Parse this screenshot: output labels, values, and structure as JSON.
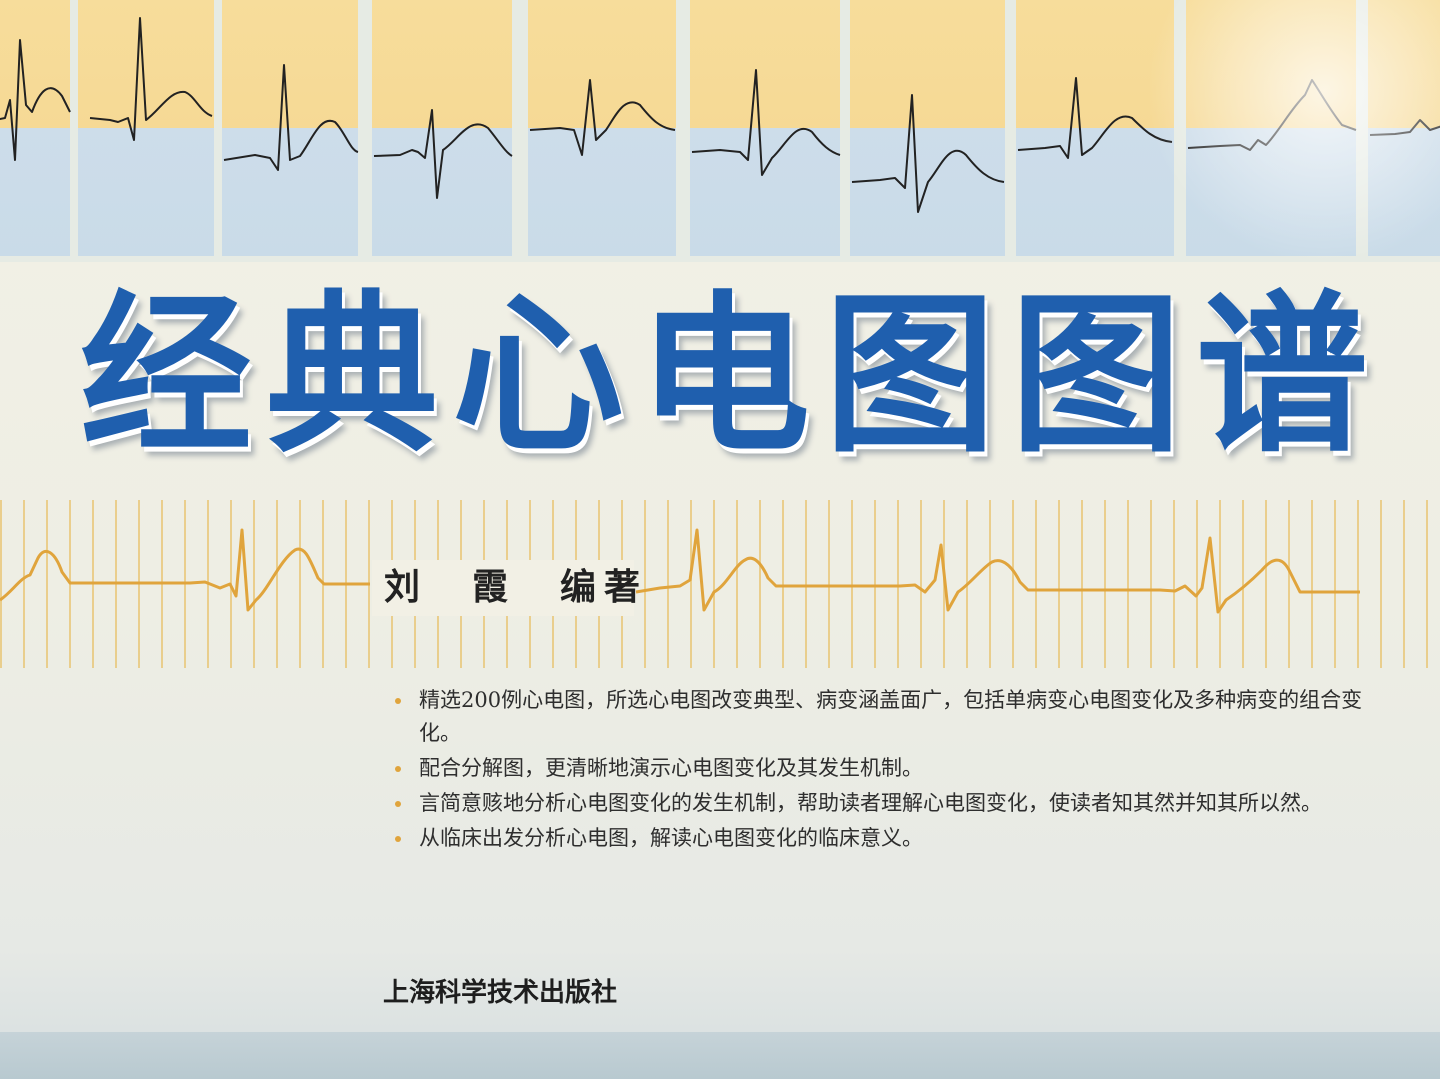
{
  "cover": {
    "title": "经典心电图图谱",
    "author": "刘　霞　编著",
    "bullets": [
      "精选200例心电图，所选心电图改变典型、病变涵盖面广，包括单病变心电图变化及多种病变的组合变化。",
      "配合分解图，更清晰地演示心电图变化及其发生机制。",
      "言简意赅地分析心电图变化的发生机制，帮助读者理解心电图变化，使读者知其然并知其所以然。",
      "从临床出发分析心电图，解读心电图变化的临床意义。"
    ],
    "publisher": "上海科学技术出版社"
  },
  "colors": {
    "title_blue": "#1f5fae",
    "panel_yellow": "#f7dd9b",
    "panel_blue": "#cdddea",
    "ecg_gold": "#e0a43c",
    "trace_black": "#222222"
  },
  "icons": [
    "ecg-trace-icon",
    "bullet-dot-icon"
  ]
}
